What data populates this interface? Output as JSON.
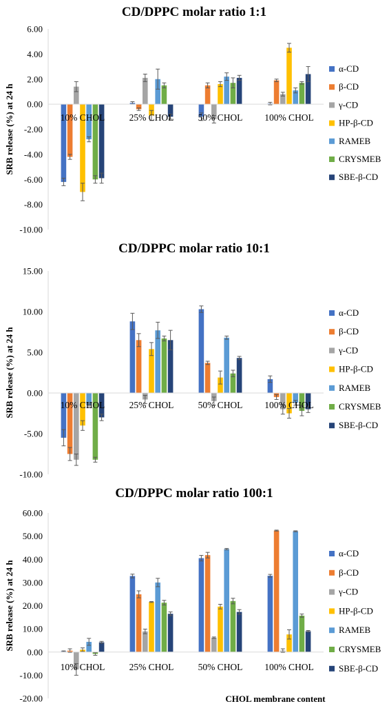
{
  "colors": {
    "α-CD": "#4472C4",
    "β-CD": "#ED7D31",
    "γ-CD": "#A5A5A5",
    "HP-β-CD": "#FFC000",
    "RAMEB": "#5B9BD5",
    "CRYSMEB": "#70AD47",
    "SBE-β-CD": "#264478"
  },
  "chart_data": [
    {
      "type": "bar",
      "title": "CD/DPPC molar ratio 1:1",
      "ylabel": "SRB release (%) at 24 h",
      "xlabel": "",
      "ylim": [
        -10,
        6
      ],
      "yticks": [
        "6.00",
        "4.00",
        "2.00",
        "0.00",
        "-2.00",
        "-4.00",
        "-6.00",
        "-8.00",
        "-10.00"
      ],
      "grid": false,
      "legend_position": "right",
      "categories": [
        "10% CHOL",
        "25% CHOL",
        "50% CHOL",
        "100% CHOL"
      ],
      "series": [
        {
          "name": "α-CD",
          "values": [
            -6.2,
            0.1,
            -1.0,
            0.05
          ],
          "errors": [
            0.3,
            0.1,
            0.3,
            0.1
          ]
        },
        {
          "name": "β-CD",
          "values": [
            -4.2,
            -0.4,
            1.5,
            1.9
          ],
          "errors": [
            0.2,
            0.1,
            0.2,
            0.1
          ]
        },
        {
          "name": "γ-CD",
          "values": [
            1.4,
            2.1,
            -1.2,
            0.8
          ],
          "errors": [
            0.4,
            0.3,
            0.3,
            0.15
          ]
        },
        {
          "name": "HP-β-CD",
          "values": [
            -7.0,
            -0.9,
            1.6,
            4.5
          ],
          "errors": [
            0.7,
            0.4,
            0.2,
            0.35
          ]
        },
        {
          "name": "RAMEB",
          "values": [
            -2.8,
            2.0,
            2.2,
            1.1
          ],
          "errors": [
            0.2,
            0.8,
            0.3,
            0.2
          ]
        },
        {
          "name": "CRYSMEB",
          "values": [
            -6.0,
            1.5,
            1.7,
            1.7
          ],
          "errors": [
            0.3,
            0.2,
            0.4,
            0.1
          ]
        },
        {
          "name": "SBE-β-CD",
          "values": [
            -5.9,
            -1.0,
            2.1,
            2.4
          ],
          "errors": [
            0.4,
            0.2,
            0.2,
            0.6
          ]
        }
      ]
    },
    {
      "type": "bar",
      "title": "CD/DPPC molar ratio 10:1",
      "ylabel": "SRB release (%) at 24 h",
      "xlabel": "",
      "ylim": [
        -10,
        15
      ],
      "yticks": [
        "15.00",
        "10.00",
        "5.00",
        "0.00",
        "-5.00",
        "-10.00"
      ],
      "grid": false,
      "legend_position": "right",
      "categories": [
        "10% CHOL",
        "25% CHOL",
        "50% CHOL",
        "100% CHOL"
      ],
      "series": [
        {
          "name": "α-CD",
          "values": [
            -5.5,
            8.8,
            10.3,
            1.7
          ],
          "errors": [
            1.0,
            1.0,
            0.4,
            0.4
          ]
        },
        {
          "name": "β-CD",
          "values": [
            -7.5,
            6.5,
            3.7,
            -0.5
          ],
          "errors": [
            0.8,
            0.8,
            0.2,
            0.3
          ]
        },
        {
          "name": "γ-CD",
          "values": [
            -8.2,
            -0.8,
            -1.0,
            -2.0
          ],
          "errors": [
            0.7,
            0.5,
            0.5,
            0.6
          ]
        },
        {
          "name": "HP-β-CD",
          "values": [
            -4.0,
            5.4,
            1.9,
            -2.5
          ],
          "errors": [
            0.6,
            0.8,
            0.8,
            0.6
          ]
        },
        {
          "name": "RAMEB",
          "values": [
            -1.5,
            7.7,
            6.8,
            -1.2
          ],
          "errors": [
            0.3,
            1.0,
            0.2,
            0.3
          ]
        },
        {
          "name": "CRYSMEB",
          "values": [
            -8.2,
            6.7,
            2.4,
            -2.2
          ],
          "errors": [
            0.3,
            0.3,
            0.4,
            0.6
          ]
        },
        {
          "name": "SBE-β-CD",
          "values": [
            -3.0,
            6.5,
            4.3,
            -2.0
          ],
          "errors": [
            0.4,
            1.2,
            0.2,
            0.4
          ]
        }
      ]
    },
    {
      "type": "bar",
      "title": "CD/DPPC molar ratio 100:1",
      "ylabel": "SRB release (%) at 24 h",
      "xlabel": "CHOL membrane content",
      "ylim": [
        -20,
        60
      ],
      "yticks": [
        "60.00",
        "50.00",
        "40.00",
        "30.00",
        "20.00",
        "10.00",
        "0.00",
        "-10.00",
        "-20.00"
      ],
      "grid": false,
      "legend_position": "right",
      "categories": [
        "10% CHOL",
        "25% CHOL",
        "50% CHOL",
        "100% CHOL"
      ],
      "series": [
        {
          "name": "α-CD",
          "values": [
            0.3,
            32.8,
            40.5,
            32.9
          ],
          "errors": [
            0.2,
            0.8,
            1.2,
            0.6
          ]
        },
        {
          "name": "β-CD",
          "values": [
            0.6,
            24.9,
            41.8,
            52.4
          ],
          "errors": [
            0.8,
            1.5,
            1.2,
            0.2
          ]
        },
        {
          "name": "γ-CD",
          "values": [
            -7.5,
            8.9,
            6.2,
            0.6
          ],
          "errors": [
            2.5,
            1.0,
            0.3,
            0.8
          ]
        },
        {
          "name": "HP-β-CD",
          "values": [
            1.0,
            21.6,
            19.6,
            7.6
          ],
          "errors": [
            0.8,
            0.2,
            1.0,
            2.0
          ]
        },
        {
          "name": "RAMEB",
          "values": [
            4.4,
            30.0,
            44.4,
            52.1
          ],
          "errors": [
            1.5,
            1.8,
            0.3,
            0.2
          ]
        },
        {
          "name": "CRYSMEB",
          "values": [
            -0.8,
            21.3,
            22.0,
            15.7
          ],
          "errors": [
            0.6,
            1.0,
            1.2,
            0.7
          ]
        },
        {
          "name": "SBE-β-CD",
          "values": [
            4.2,
            16.5,
            17.3,
            9.0
          ],
          "errors": [
            0.4,
            0.8,
            1.0,
            0.3
          ]
        }
      ]
    }
  ]
}
